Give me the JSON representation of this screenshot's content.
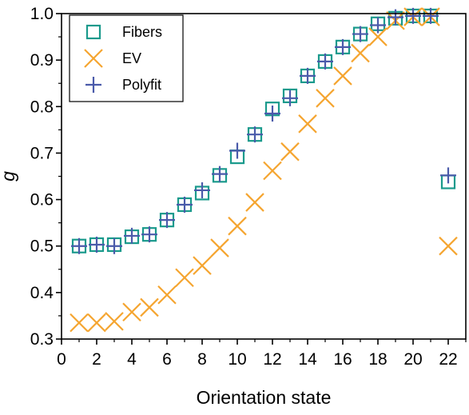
{
  "chart_data": {
    "type": "scatter",
    "xlabel": "Orientation state",
    "ylabel": "g",
    "xlim": [
      0,
      23
    ],
    "ylim": [
      0.3,
      1.0
    ],
    "xticks": [
      0,
      2,
      4,
      6,
      8,
      10,
      12,
      14,
      16,
      18,
      20,
      22
    ],
    "yticks": [
      0.3,
      0.4,
      0.5,
      0.6,
      0.7,
      0.8,
      0.9,
      1.0
    ],
    "ytick_labels": [
      "0.3",
      "0.4",
      "0.5",
      "0.6",
      "0.7",
      "0.8",
      "0.9",
      "1.0"
    ],
    "legend_position": "top-left",
    "series": [
      {
        "name": "Fibers",
        "marker": "square",
        "color": "#1a9a8c",
        "x": [
          1,
          2,
          3,
          4,
          5,
          6,
          7,
          8,
          9,
          10,
          11,
          12,
          13,
          14,
          15,
          16,
          17,
          18,
          19,
          20,
          21,
          22
        ],
        "y": [
          0.5,
          0.503,
          0.503,
          0.52,
          0.525,
          0.556,
          0.589,
          0.614,
          0.652,
          0.692,
          0.74,
          0.795,
          0.823,
          0.866,
          0.897,
          0.928,
          0.956,
          0.978,
          0.99,
          0.995,
          0.995,
          0.638
        ]
      },
      {
        "name": "EV",
        "marker": "x",
        "color": "#f5a530",
        "x": [
          1,
          2,
          3,
          4,
          5,
          6,
          7,
          8,
          9,
          10,
          11,
          12,
          13,
          14,
          15,
          16,
          17,
          18,
          19,
          20,
          21,
          22
        ],
        "y": [
          0.335,
          0.335,
          0.338,
          0.358,
          0.368,
          0.395,
          0.432,
          0.458,
          0.496,
          0.543,
          0.594,
          0.662,
          0.703,
          0.763,
          0.818,
          0.866,
          0.915,
          0.95,
          0.985,
          0.993,
          0.993,
          0.5
        ]
      },
      {
        "name": "Polyfit",
        "marker": "plus",
        "color": "#4a5aaa",
        "x": [
          1,
          2,
          3,
          4,
          5,
          6,
          7,
          8,
          9,
          10,
          11,
          12,
          13,
          14,
          15,
          16,
          17,
          18,
          19,
          20,
          21,
          22
        ],
        "y": [
          0.5,
          0.503,
          0.5,
          0.522,
          0.525,
          0.556,
          0.589,
          0.62,
          0.655,
          0.705,
          0.74,
          0.785,
          0.818,
          0.866,
          0.897,
          0.928,
          0.956,
          0.975,
          0.992,
          0.995,
          0.995,
          0.652
        ]
      }
    ]
  }
}
